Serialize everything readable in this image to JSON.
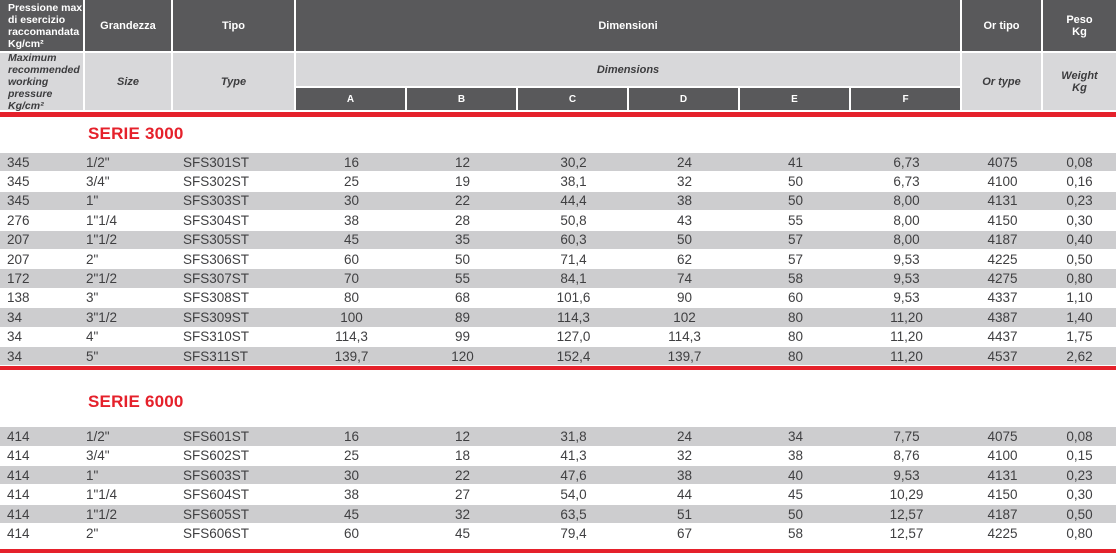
{
  "header": {
    "pressure_it": "Pressione max\ndi esercizio\nraccomandata\nKg/cm²",
    "pressure_en": "Maximum\nrecommended\nworking\npressure Kg/cm²",
    "size_it": "Grandezza",
    "size_en": "Size",
    "type_it": "Tipo",
    "type_en": "Type",
    "dimensions_it": "Dimensioni",
    "dimensions_en": "Dimensions",
    "dim_letters": [
      "A",
      "B",
      "C",
      "D",
      "E",
      "F"
    ],
    "or_it": "Or tipo",
    "or_en": "Or type",
    "weight_it": "Peso\nKg",
    "weight_en": "Weight\nKg"
  },
  "colors": {
    "accent_red": "#e5212b",
    "header_dark": "#59595b",
    "header_light": "#d8d8da",
    "row_stripe": "#cdcdcf"
  },
  "sections": [
    {
      "title": "SERIE 3000",
      "rows": [
        [
          "345",
          "1/2\"",
          "SFS301ST",
          "16",
          "12",
          "30,2",
          "24",
          "41",
          "6,73",
          "4075",
          "0,08"
        ],
        [
          "345",
          "3/4\"",
          "SFS302ST",
          "25",
          "19",
          "38,1",
          "32",
          "50",
          "6,73",
          "4100",
          "0,16"
        ],
        [
          "345",
          "1\"",
          "SFS303ST",
          "30",
          "22",
          "44,4",
          "38",
          "50",
          "8,00",
          "4131",
          "0,23"
        ],
        [
          "276",
          "1\"1/4",
          "SFS304ST",
          "38",
          "28",
          "50,8",
          "43",
          "55",
          "8,00",
          "4150",
          "0,30"
        ],
        [
          "207",
          "1\"1/2",
          "SFS305ST",
          "45",
          "35",
          "60,3",
          "50",
          "57",
          "8,00",
          "4187",
          "0,40"
        ],
        [
          "207",
          "2\"",
          "SFS306ST",
          "60",
          "50",
          "71,4",
          "62",
          "57",
          "9,53",
          "4225",
          "0,50"
        ],
        [
          "172",
          "2\"1/2",
          "SFS307ST",
          "70",
          "55",
          "84,1",
          "74",
          "58",
          "9,53",
          "4275",
          "0,80"
        ],
        [
          "138",
          "3\"",
          "SFS308ST",
          "80",
          "68",
          "101,6",
          "90",
          "60",
          "9,53",
          "4337",
          "1,10"
        ],
        [
          "34",
          "3\"1/2",
          "SFS309ST",
          "100",
          "89",
          "114,3",
          "102",
          "80",
          "11,20",
          "4387",
          "1,40"
        ],
        [
          "34",
          "4\"",
          "SFS310ST",
          "114,3",
          "99",
          "127,0",
          "114,3",
          "80",
          "11,20",
          "4437",
          "1,75"
        ],
        [
          "34",
          "5\"",
          "SFS311ST",
          "139,7",
          "120",
          "152,4",
          "139,7",
          "80",
          "11,20",
          "4537",
          "2,62"
        ]
      ]
    },
    {
      "title": "SERIE 6000",
      "rows": [
        [
          "414",
          "1/2\"",
          "SFS601ST",
          "16",
          "12",
          "31,8",
          "24",
          "34",
          "7,75",
          "4075",
          "0,08"
        ],
        [
          "414",
          "3/4\"",
          "SFS602ST",
          "25",
          "18",
          "41,3",
          "32",
          "38",
          "8,76",
          "4100",
          "0,15"
        ],
        [
          "414",
          "1\"",
          "SFS603ST",
          "30",
          "22",
          "47,6",
          "38",
          "40",
          "9,53",
          "4131",
          "0,23"
        ],
        [
          "414",
          "1\"1/4",
          "SFS604ST",
          "38",
          "27",
          "54,0",
          "44",
          "45",
          "10,29",
          "4150",
          "0,30"
        ],
        [
          "414",
          "1\"1/2",
          "SFS605ST",
          "45",
          "32",
          "63,5",
          "51",
          "50",
          "12,57",
          "4187",
          "0,50"
        ],
        [
          "414",
          "2\"",
          "SFS606ST",
          "60",
          "45",
          "79,4",
          "67",
          "58",
          "12,57",
          "4225",
          "0,80"
        ]
      ]
    }
  ]
}
